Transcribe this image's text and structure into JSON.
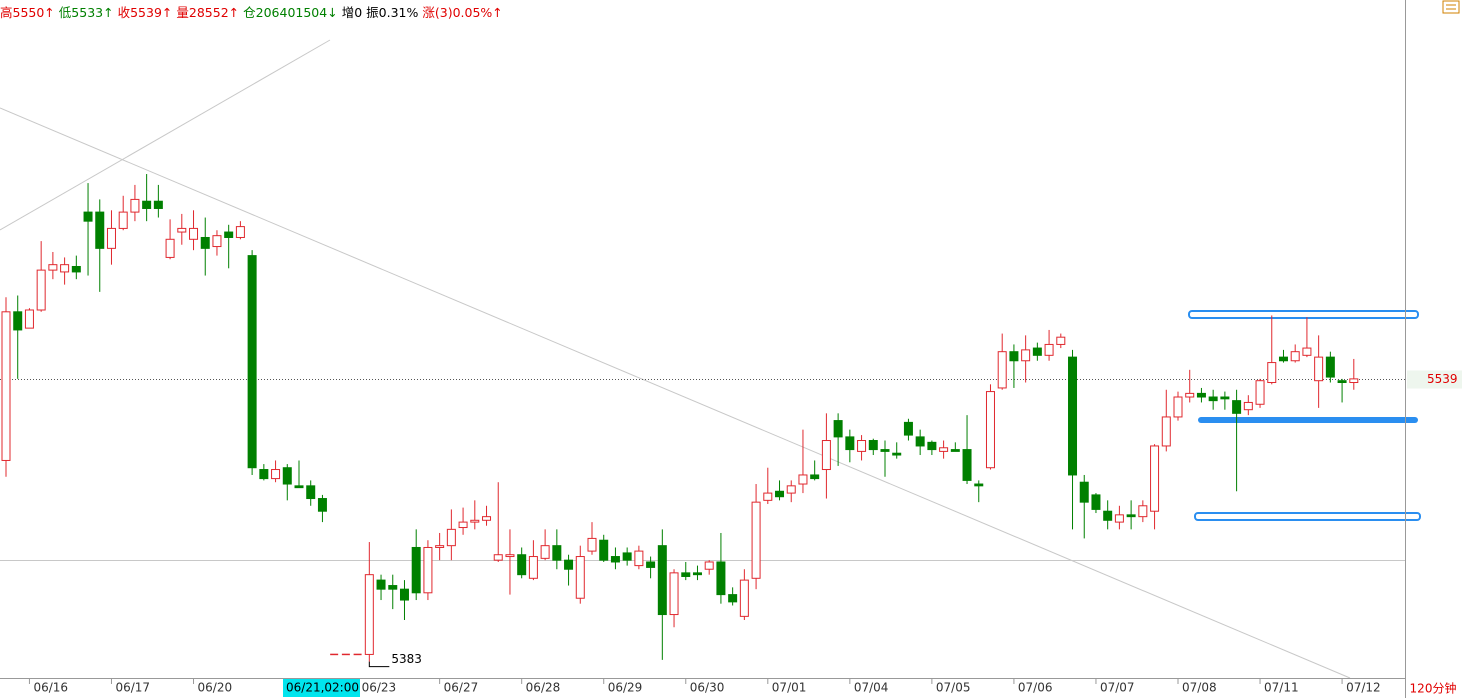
{
  "chart_data": {
    "type": "candlestick",
    "header": [
      {
        "text": "高5550↑",
        "color": "#e00000"
      },
      {
        "text": "低5533↑",
        "color": "#008000"
      },
      {
        "text": "收5539↑",
        "color": "#e00000"
      },
      {
        "text": "量28552↑",
        "color": "#e00000"
      },
      {
        "text": "仓206401504↓",
        "color": "#008000"
      },
      {
        "text": "增0",
        "color": "#000000"
      },
      {
        "text": "振0.31%",
        "color": "#000000"
      },
      {
        "text": "涨(3)0.05%↑",
        "color": "#e00000"
      }
    ],
    "period": "120分钟",
    "cursor_label": "06/21,02:00",
    "up_color": "#e0282e",
    "down_color": "#008000",
    "ylim": [
      5374,
      5748
    ],
    "categories": [
      null,
      null,
      "06/16",
      null,
      null,
      null,
      null,
      null,
      null,
      "06/17",
      null,
      null,
      null,
      null,
      null,
      null,
      "06/20",
      null,
      null,
      null,
      null,
      null,
      null,
      null,
      null,
      null,
      null,
      null,
      null,
      null,
      "06/23",
      null,
      null,
      null,
      null,
      null,
      null,
      "06/27",
      null,
      null,
      null,
      null,
      null,
      null,
      "06/28",
      null,
      null,
      null,
      null,
      null,
      null,
      "06/29",
      null,
      null,
      null,
      null,
      null,
      null,
      "06/30",
      null,
      null,
      null,
      null,
      null,
      null,
      "07/01",
      null,
      null,
      null,
      null,
      null,
      null,
      "07/04",
      null,
      null,
      null,
      null,
      null,
      null,
      "07/05",
      null,
      null,
      null,
      null,
      null,
      null,
      "07/06",
      null,
      null,
      null,
      null,
      null,
      null,
      "07/07",
      null,
      null,
      null,
      null,
      null,
      null,
      "07/08",
      null,
      null,
      null,
      null,
      null,
      null,
      "07/11",
      null,
      null,
      null,
      null,
      null,
      null,
      "07/12",
      null
    ],
    "open": [
      5494,
      5576,
      5567,
      5577,
      5599,
      5598,
      5601,
      5631,
      5631,
      5611,
      5622,
      5631,
      5637,
      5637,
      5606,
      5620,
      5616,
      5617,
      5612,
      5620,
      5617,
      5607,
      5489,
      5484,
      5490,
      5480,
      5480,
      5473,
      5387,
      5387,
      5387,
      5387,
      5428,
      5425,
      5423,
      5446,
      5421,
      5446,
      5447,
      5457,
      5460,
      5461,
      5439,
      5441,
      5442,
      5429,
      5440,
      5447,
      5439,
      5418,
      5444,
      5450,
      5441,
      5443,
      5436,
      5438,
      5447,
      5409,
      5432,
      5432,
      5434,
      5438,
      5420,
      5408,
      5429,
      5472,
      5477,
      5476,
      5481,
      5486,
      5489,
      5516,
      5507,
      5499,
      5505,
      5500,
      5498,
      5515,
      5507,
      5504,
      5499,
      5500,
      5500,
      5481,
      5490,
      5534,
      5554,
      5549,
      5556,
      5552,
      5558,
      5551,
      5482,
      5475,
      5466,
      5460,
      5464,
      5463,
      5466,
      5502,
      5518,
      5529,
      5531,
      5529,
      5529,
      5527,
      5522,
      5525,
      5537,
      5551,
      5549,
      5552,
      5538,
      5551,
      5538,
      5537
    ],
    "high": [
      5584,
      5585,
      5578,
      5615,
      5609,
      5606,
      5607,
      5647,
      5638,
      5632,
      5640,
      5646,
      5652,
      5646,
      5627,
      5630,
      5632,
      5628,
      5621,
      5624,
      5626,
      5610,
      5492,
      5494,
      5492,
      5494,
      5483,
      5475,
      5387,
      5387,
      5387,
      5449,
      5431,
      5431,
      5428,
      5456,
      5450,
      5454,
      5467,
      5468,
      5472,
      5469,
      5482,
      5456,
      5446,
      5450,
      5456,
      5456,
      5442,
      5447,
      5460,
      5453,
      5446,
      5446,
      5447,
      5441,
      5456,
      5434,
      5438,
      5436,
      5439,
      5454,
      5424,
      5434,
      5481,
      5490,
      5483,
      5483,
      5511,
      5494,
      5520,
      5520,
      5511,
      5508,
      5506,
      5505,
      5504,
      5517,
      5511,
      5505,
      5505,
      5504,
      5519,
      5483,
      5536,
      5564,
      5558,
      5563,
      5559,
      5566,
      5564,
      5555,
      5486,
      5476,
      5472,
      5469,
      5472,
      5472,
      5503,
      5533,
      5532,
      5544,
      5534,
      5533,
      5532,
      5533,
      5530,
      5539,
      5574,
      5555,
      5558,
      5573,
      5563,
      5554,
      5539,
      5550
    ],
    "low": [
      5485,
      5539,
      5567,
      5576,
      5594,
      5591,
      5594,
      5596,
      5587,
      5602,
      5621,
      5626,
      5626,
      5628,
      5605,
      5613,
      5610,
      5596,
      5607,
      5600,
      5616,
      5486,
      5483,
      5482,
      5472,
      5479,
      5469,
      5460,
      5387,
      5387,
      5387,
      5383,
      5417,
      5412,
      5406,
      5417,
      5417,
      5439,
      5439,
      5453,
      5456,
      5458,
      5438,
      5420,
      5429,
      5428,
      5439,
      5434,
      5425,
      5415,
      5442,
      5438,
      5434,
      5436,
      5434,
      5429,
      5384,
      5402,
      5428,
      5428,
      5431,
      5415,
      5414,
      5406,
      5423,
      5470,
      5472,
      5471,
      5476,
      5483,
      5473,
      5491,
      5493,
      5494,
      5497,
      5485,
      5495,
      5505,
      5497,
      5497,
      5495,
      5499,
      5481,
      5471,
      5489,
      5533,
      5534,
      5537,
      5549,
      5549,
      5556,
      5456,
      5451,
      5465,
      5456,
      5456,
      5456,
      5460,
      5456,
      5499,
      5516,
      5526,
      5526,
      5522,
      5522,
      5477,
      5519,
      5523,
      5536,
      5548,
      5548,
      5551,
      5523,
      5537,
      5526,
      5533
    ],
    "close": [
      5576,
      5566,
      5577,
      5599,
      5602,
      5602,
      5598,
      5626,
      5611,
      5622,
      5631,
      5638,
      5633,
      5633,
      5616,
      5622,
      5622,
      5611,
      5618,
      5617,
      5623,
      5490,
      5484,
      5489,
      5481,
      5479,
      5473,
      5466,
      5387,
      5387,
      5387,
      5431,
      5423,
      5423,
      5417,
      5421,
      5446,
      5447,
      5456,
      5460,
      5461,
      5463,
      5442,
      5442,
      5431,
      5441,
      5447,
      5439,
      5434,
      5441,
      5451,
      5439,
      5438,
      5439,
      5444,
      5435,
      5409,
      5432,
      5430,
      5431,
      5438,
      5420,
      5416,
      5428,
      5471,
      5476,
      5474,
      5480,
      5486,
      5484,
      5505,
      5507,
      5500,
      5505,
      5500,
      5499,
      5497,
      5508,
      5502,
      5500,
      5501,
      5499,
      5483,
      5480,
      5532,
      5554,
      5549,
      5555,
      5552,
      5558,
      5562,
      5486,
      5471,
      5467,
      5461,
      5464,
      5463,
      5469,
      5502,
      5518,
      5529,
      5531,
      5529,
      5527,
      5528,
      5520,
      5526,
      5538,
      5548,
      5549,
      5554,
      5556,
      5551,
      5540,
      5537,
      5539
    ]
  }
}
